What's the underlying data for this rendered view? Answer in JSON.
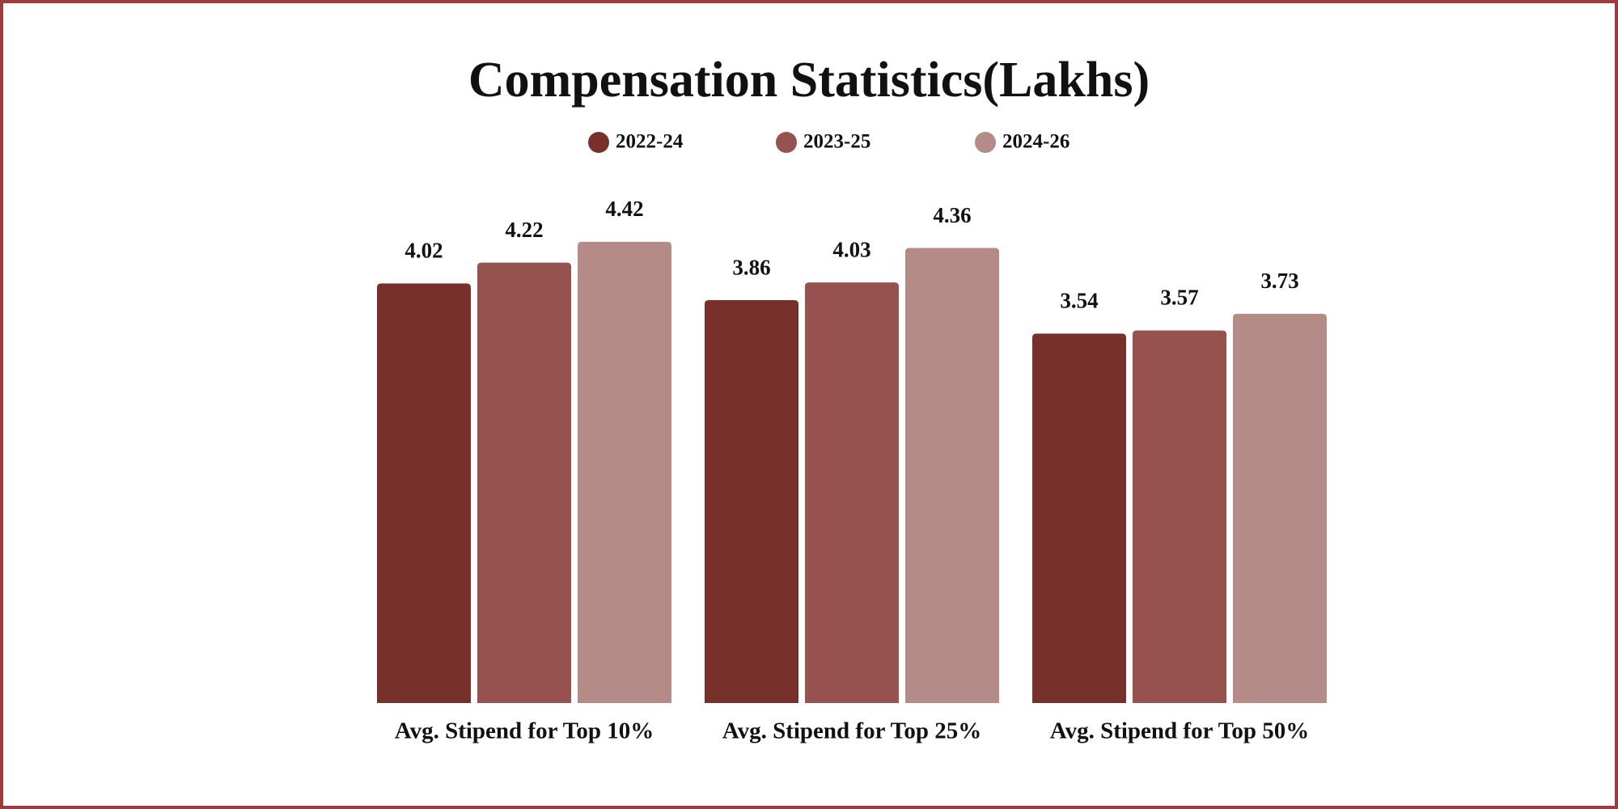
{
  "chart_data": {
    "type": "bar",
    "title": "Compensation Statistics(Lakhs)",
    "categories": [
      "Avg. Stipend for Top 10%",
      "Avg. Stipend for Top 25%",
      "Avg. Stipend for Top 50%"
    ],
    "series": [
      {
        "name": "2022-24",
        "color": "#78302b",
        "values": [
          4.02,
          3.86,
          3.54
        ]
      },
      {
        "name": "2023-25",
        "color": "#95524f",
        "values": [
          4.22,
          4.03,
          3.57
        ]
      },
      {
        "name": "2024-26",
        "color": "#b58b87",
        "values": [
          4.42,
          4.36,
          3.73
        ]
      }
    ],
    "ylim": [
      0,
      5
    ],
    "grid": false
  }
}
